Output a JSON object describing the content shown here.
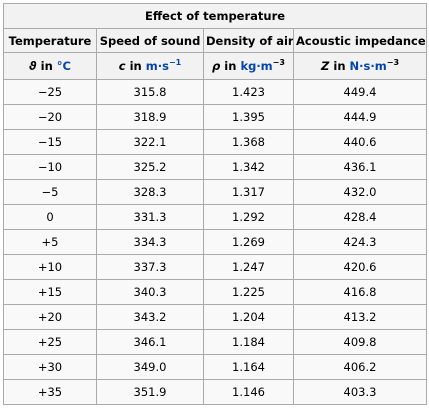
{
  "caption": "Effect of temperature",
  "headers": [
    "Temperature",
    "Speed of sound",
    "Density of air",
    "Acoustic impedance"
  ],
  "units": [
    {
      "symbol": "ϑ",
      "in": "in",
      "unit": "°C",
      "sup": ""
    },
    {
      "symbol": "c",
      "in": "in",
      "unit": "m·s",
      "sup": "−1"
    },
    {
      "symbol": "ρ",
      "in": "in",
      "unit": "kg·m",
      "sup": "−3"
    },
    {
      "symbol": "Z",
      "in": "in",
      "unit": "N·s·m",
      "sup": "−3"
    }
  ],
  "rows": [
    [
      "−25",
      "315.8",
      "1.423",
      "449.4"
    ],
    [
      "−20",
      "318.9",
      "1.395",
      "444.9"
    ],
    [
      "−15",
      "322.1",
      "1.368",
      "440.6"
    ],
    [
      "−10",
      "325.2",
      "1.342",
      "436.1"
    ],
    [
      "−5",
      "328.3",
      "1.317",
      "432.0"
    ],
    [
      "0",
      "331.3",
      "1.292",
      "428.4"
    ],
    [
      "+5",
      "334.3",
      "1.269",
      "424.3"
    ],
    [
      "+10",
      "337.3",
      "1.247",
      "420.6"
    ],
    [
      "+15",
      "340.3",
      "1.225",
      "416.8"
    ],
    [
      "+20",
      "343.2",
      "1.204",
      "413.2"
    ],
    [
      "+25",
      "346.1",
      "1.184",
      "409.8"
    ],
    [
      "+30",
      "349.0",
      "1.164",
      "406.2"
    ],
    [
      "+35",
      "351.9",
      "1.146",
      "403.3"
    ]
  ]
}
